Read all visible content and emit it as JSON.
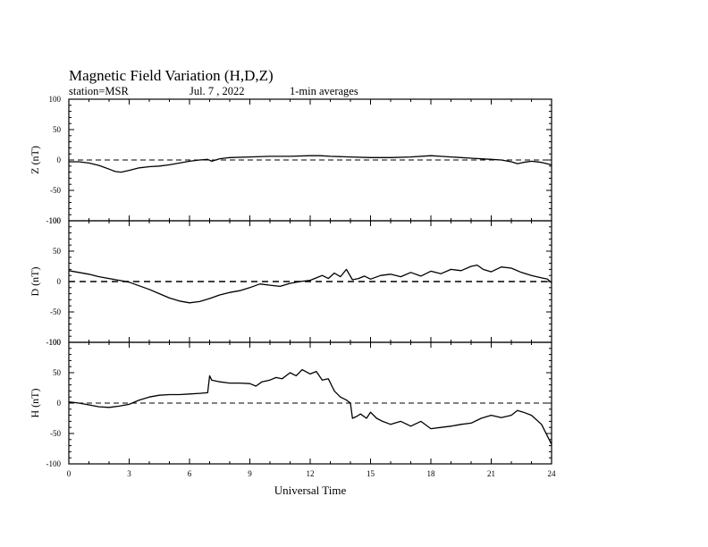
{
  "title": "Magnetic Field Variation (H,D,Z)",
  "station": "station=MSR",
  "date": "Jul.  7  , 2022",
  "averaging": "1-min averages",
  "chart_data": {
    "type": "line",
    "xlabel": "Universal Time",
    "xlim": [
      0,
      24
    ],
    "x_ticks": [
      0,
      3,
      6,
      9,
      12,
      15,
      18,
      21,
      24
    ],
    "panels": [
      {
        "name": "Z",
        "ylabel": "Z (nT)",
        "ylim": [
          -100,
          100
        ],
        "y_ticks": [
          100,
          50,
          0,
          -50,
          -100
        ],
        "zero_line": "dashed",
        "x": [
          0,
          0.5,
          1,
          1.5,
          2,
          2.3,
          2.6,
          3,
          3.5,
          4,
          4.5,
          5,
          5.5,
          6,
          6.5,
          6.9,
          7.1,
          7.5,
          8,
          9,
          10,
          11,
          12,
          12.5,
          13,
          14,
          15,
          16,
          17,
          18,
          18.5,
          19,
          20,
          21,
          21.5,
          22,
          22.3,
          22.6,
          23,
          23.5,
          24
        ],
        "y": [
          -3,
          -3,
          -5,
          -9,
          -15,
          -19,
          -20,
          -17,
          -13,
          -11,
          -10,
          -8,
          -5,
          -2,
          0,
          1,
          -2,
          2,
          4,
          5,
          6,
          6,
          7,
          7,
          6,
          5,
          4,
          4,
          5,
          7,
          6,
          5,
          3,
          1,
          0,
          -3,
          -6,
          -4,
          -2,
          -4,
          -8
        ]
      },
      {
        "name": "D",
        "ylabel": "D (nT)",
        "ylim": [
          -100,
          100
        ],
        "y_ticks": [
          100,
          50,
          0,
          -50,
          -100
        ],
        "zero_line": "dashed",
        "x": [
          0,
          0.5,
          1,
          1.5,
          2,
          2.5,
          3,
          3.5,
          4,
          4.5,
          5,
          5.5,
          6,
          6.5,
          7,
          7.5,
          8,
          8.5,
          9,
          9.5,
          10,
          10.5,
          11,
          11.5,
          12,
          12.3,
          12.6,
          12.9,
          13.2,
          13.5,
          13.8,
          14.1,
          14.4,
          14.7,
          15,
          15.5,
          16,
          16.5,
          17,
          17.5,
          18,
          18.5,
          19,
          19.5,
          20,
          20.3,
          20.6,
          21,
          21.5,
          22,
          22.5,
          23,
          23.5,
          23.8,
          24
        ],
        "y": [
          18,
          15,
          12,
          8,
          5,
          2,
          -1,
          -7,
          -13,
          -20,
          -27,
          -32,
          -35,
          -33,
          -28,
          -22,
          -18,
          -15,
          -10,
          -4,
          -6,
          -8,
          -3,
          0,
          2,
          6,
          10,
          5,
          14,
          8,
          20,
          3,
          5,
          9,
          4,
          10,
          12,
          8,
          15,
          9,
          17,
          13,
          20,
          18,
          25,
          27,
          20,
          16,
          24,
          22,
          15,
          10,
          6,
          4,
          -2
        ]
      },
      {
        "name": "H",
        "ylabel": "H (nT)",
        "ylim": [
          -100,
          100
        ],
        "y_ticks": [
          100,
          50,
          0,
          -50,
          -100
        ],
        "zero_line": "dashed",
        "x": [
          0,
          0.5,
          1,
          1.5,
          2,
          2.5,
          3,
          3.5,
          4,
          4.5,
          5,
          5.5,
          6,
          6.5,
          6.9,
          7,
          7.1,
          7.5,
          8,
          8.5,
          9,
          9.3,
          9.6,
          10,
          10.3,
          10.6,
          11,
          11.3,
          11.6,
          12,
          12.3,
          12.6,
          12.9,
          13.2,
          13.5,
          13.8,
          14,
          14.1,
          14.3,
          14.5,
          14.8,
          15,
          15.3,
          15.6,
          16,
          16.5,
          17,
          17.5,
          18,
          18.5,
          19,
          19.5,
          20,
          20.5,
          21,
          21.5,
          22,
          22.3,
          22.6,
          23,
          23.5,
          24
        ],
        "y": [
          2,
          0,
          -3,
          -6,
          -7,
          -5,
          -2,
          5,
          10,
          13,
          14,
          14,
          15,
          16,
          17,
          45,
          38,
          35,
          33,
          33,
          32,
          28,
          35,
          38,
          42,
          40,
          50,
          45,
          55,
          48,
          52,
          38,
          40,
          20,
          10,
          5,
          0,
          -25,
          -22,
          -18,
          -25,
          -15,
          -25,
          -30,
          -35,
          -30,
          -38,
          -30,
          -42,
          -40,
          -38,
          -35,
          -33,
          -25,
          -20,
          -24,
          -20,
          -12,
          -15,
          -20,
          -35,
          -68
        ]
      }
    ]
  }
}
